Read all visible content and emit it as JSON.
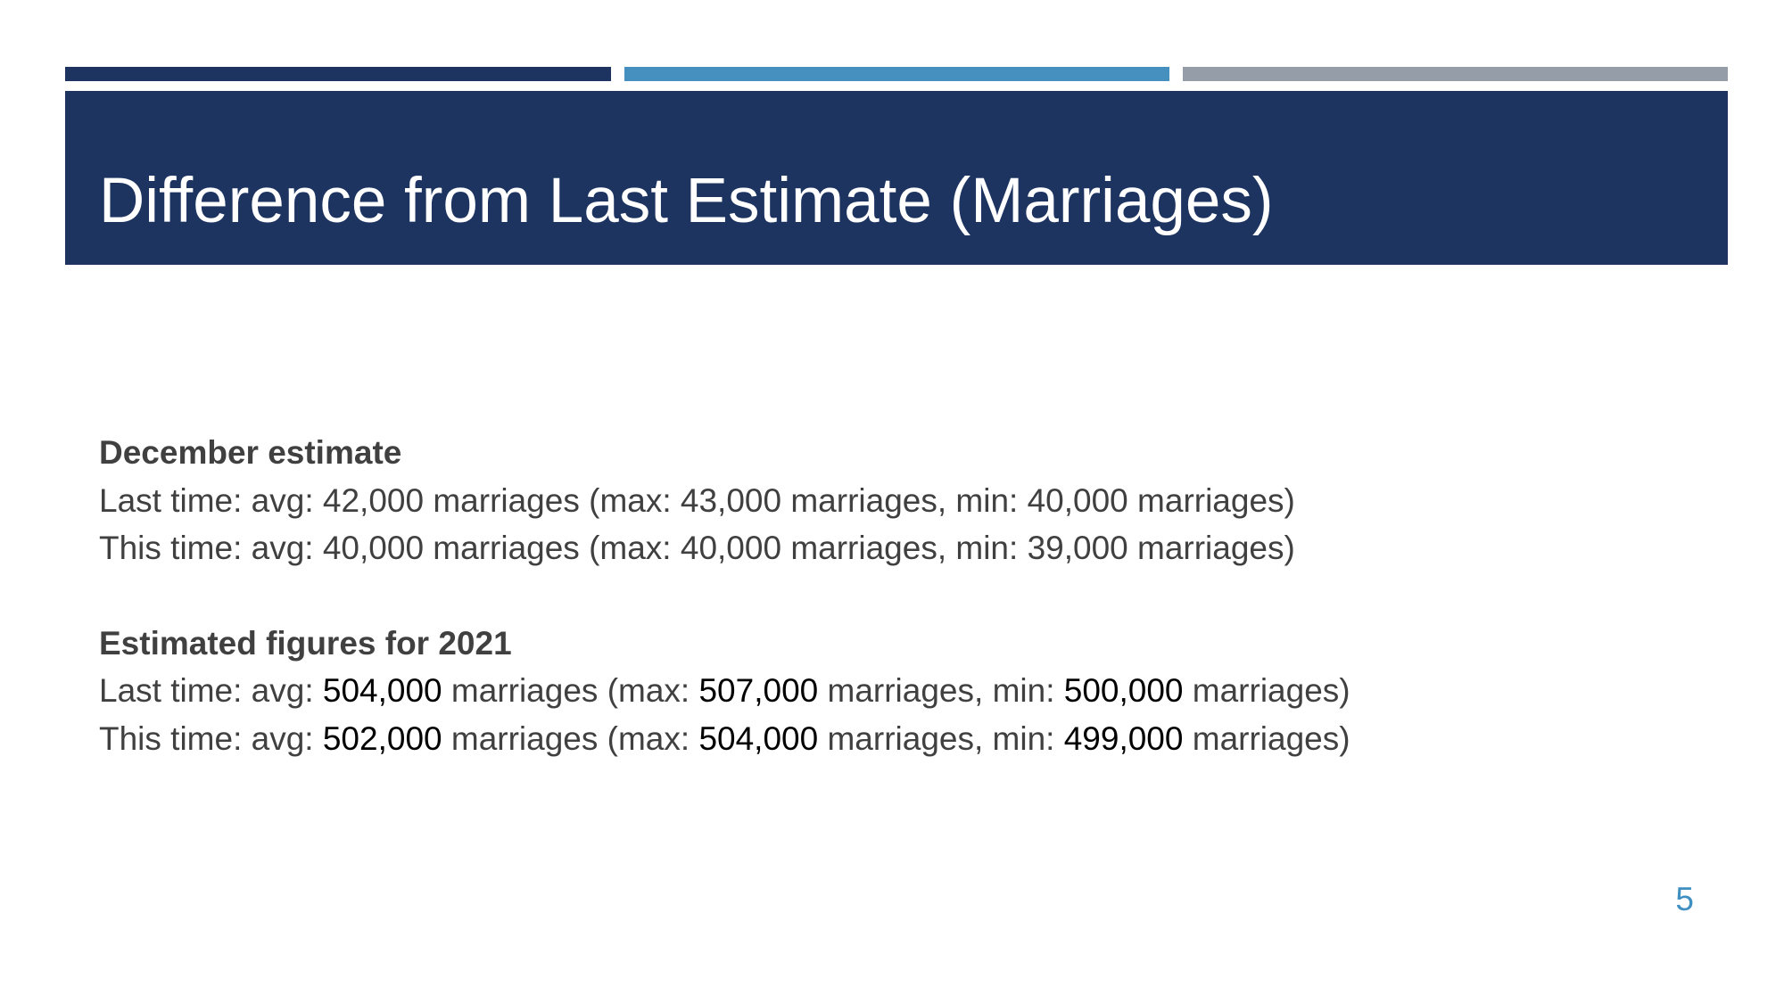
{
  "colors": {
    "navy": "#1d3461",
    "blue": "#4590bf",
    "gray": "#959ea8",
    "body_text": "#404040",
    "page_number": "#3f8fc1"
  },
  "title": "Difference from Last Estimate (Marriages)",
  "sections": [
    {
      "heading": "December estimate",
      "lines": [
        {
          "label": "Last time: avg: ",
          "avg": "42,000",
          "mid1": " marriages (max: ",
          "max": "43,000",
          "mid2": " marriages, min: ",
          "min": "40,000",
          "end": " marriages)"
        },
        {
          "label": "This time: avg: ",
          "avg": "40,000",
          "mid1": " marriages (max: ",
          "max": "40,000",
          "mid2": " marriages, min: ",
          "min": "39,000",
          "end": " marriages)"
        }
      ]
    },
    {
      "heading": "Estimated figures for 2021",
      "lines": [
        {
          "label": "Last time: avg: ",
          "avg": "504,000",
          "mid1": " marriages (max: ",
          "max": "507,000",
          "mid2": " marriages, min: ",
          "min": "500,000",
          "end": " marriages)"
        },
        {
          "label": "This time: avg: ",
          "avg": "502,000",
          "mid1": " marriages (max: ",
          "max": "504,000",
          "mid2": " marriages, min: ",
          "min": "499,000",
          "end": " marriages)"
        }
      ]
    }
  ],
  "page_number": "5"
}
